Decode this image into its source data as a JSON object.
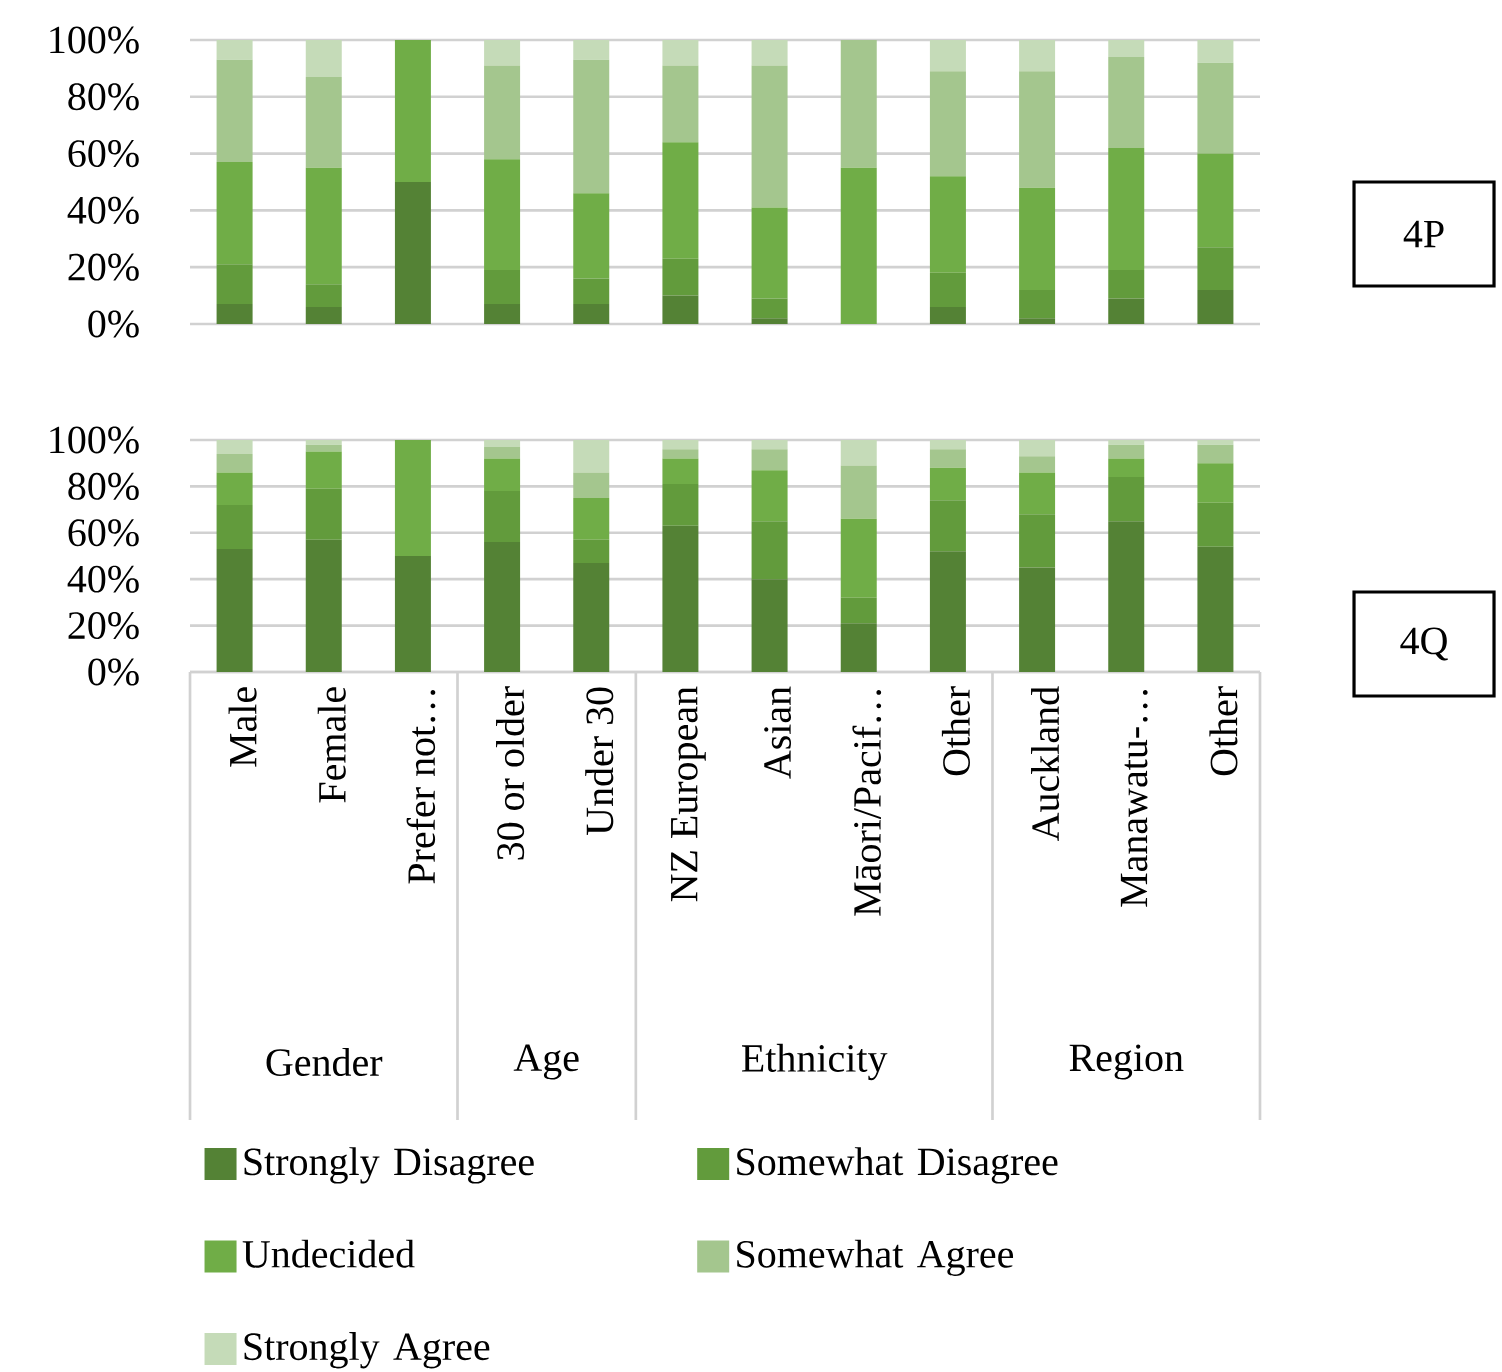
{
  "chart_data": [
    {
      "type": "bar",
      "stacked": true,
      "annotations": [
        "4P"
      ],
      "tick_labels": "y",
      "grid": "y",
      "categories": [
        null,
        null,
        null,
        null,
        null,
        null,
        null,
        null,
        null,
        null,
        null,
        null
      ],
      "ylim": [
        0,
        100
      ],
      "yticks": [
        {
          "value": 0,
          "label": "0%"
        },
        {
          "value": 20,
          "label": "20%"
        },
        {
          "value": 40,
          "label": "40%"
        },
        {
          "value": 60,
          "label": "60%"
        },
        {
          "value": 80,
          "label": "80%"
        },
        {
          "value": 100,
          "label": "100%"
        }
      ],
      "series": [
        {
          "color": "#548235",
          "values": [
            7,
            6,
            50,
            7,
            7,
            10,
            2,
            0,
            6,
            2,
            9,
            12
          ]
        },
        {
          "color": "#629b3c",
          "values": [
            14,
            8,
            0,
            12,
            9,
            13,
            7,
            0,
            12,
            10,
            10,
            15
          ]
        },
        {
          "color": "#70ad47",
          "values": [
            36,
            41,
            50,
            39,
            30,
            41,
            32,
            55,
            34,
            36,
            43,
            33
          ]
        },
        {
          "color": "#a4c68e",
          "values": [
            36,
            32,
            0,
            33,
            47,
            27,
            50,
            45,
            37,
            41,
            32,
            32
          ]
        },
        {
          "color": "#c5dbb8",
          "values": [
            7,
            13,
            0,
            9,
            7,
            9,
            9,
            0,
            11,
            11,
            6,
            8
          ]
        }
      ]
    },
    {
      "type": "bar",
      "stacked": true,
      "grid": "y",
      "legend": "bottom",
      "categories": [
        "Male",
        "Female",
        "Prefer not…",
        "30 or older",
        "Under 30",
        "NZ European",
        "Asian",
        "Māori/Pacif…",
        "Other",
        "Auckland",
        "Manawatu-…",
        "Other"
      ],
      "ylim": [
        0,
        100
      ],
      "yticks": [
        {
          "value": 0,
          "label": "0%"
        },
        {
          "value": 20,
          "label": "20%"
        },
        {
          "value": 40,
          "label": "40%"
        },
        {
          "value": 60,
          "label": "60%"
        },
        {
          "value": 80,
          "label": "80%"
        },
        {
          "value": 100,
          "label": "100%"
        }
      ],
      "annotations": [
        "4Q",
        "Gender",
        "Age",
        "Ethnicity",
        "Region"
      ],
      "series": [
        {
          "name": "Strongly Disagree",
          "color": "#548235",
          "values": [
            53,
            57,
            50,
            56,
            47,
            63,
            40,
            21,
            52,
            45,
            65,
            54
          ]
        },
        {
          "name": "Somewhat Disagree",
          "color": "#629b3c",
          "values": [
            19,
            22,
            0,
            22,
            10,
            18,
            25,
            11,
            22,
            23,
            19,
            19
          ]
        },
        {
          "name": "Undecided",
          "color": "#70ad47",
          "values": [
            14,
            16,
            50,
            14,
            18,
            11,
            22,
            34,
            14,
            18,
            8,
            17
          ]
        },
        {
          "name": "Somewhat Agree",
          "color": "#a4c68e",
          "values": [
            8,
            3,
            0,
            5,
            11,
            4,
            9,
            23,
            8,
            7,
            6,
            8
          ]
        },
        {
          "name": "Strongly Agree",
          "color": "#c5dbb8",
          "values": [
            6,
            2,
            0,
            3,
            14,
            4,
            4,
            11,
            4,
            7,
            2,
            2
          ]
        }
      ]
    }
  ]
}
